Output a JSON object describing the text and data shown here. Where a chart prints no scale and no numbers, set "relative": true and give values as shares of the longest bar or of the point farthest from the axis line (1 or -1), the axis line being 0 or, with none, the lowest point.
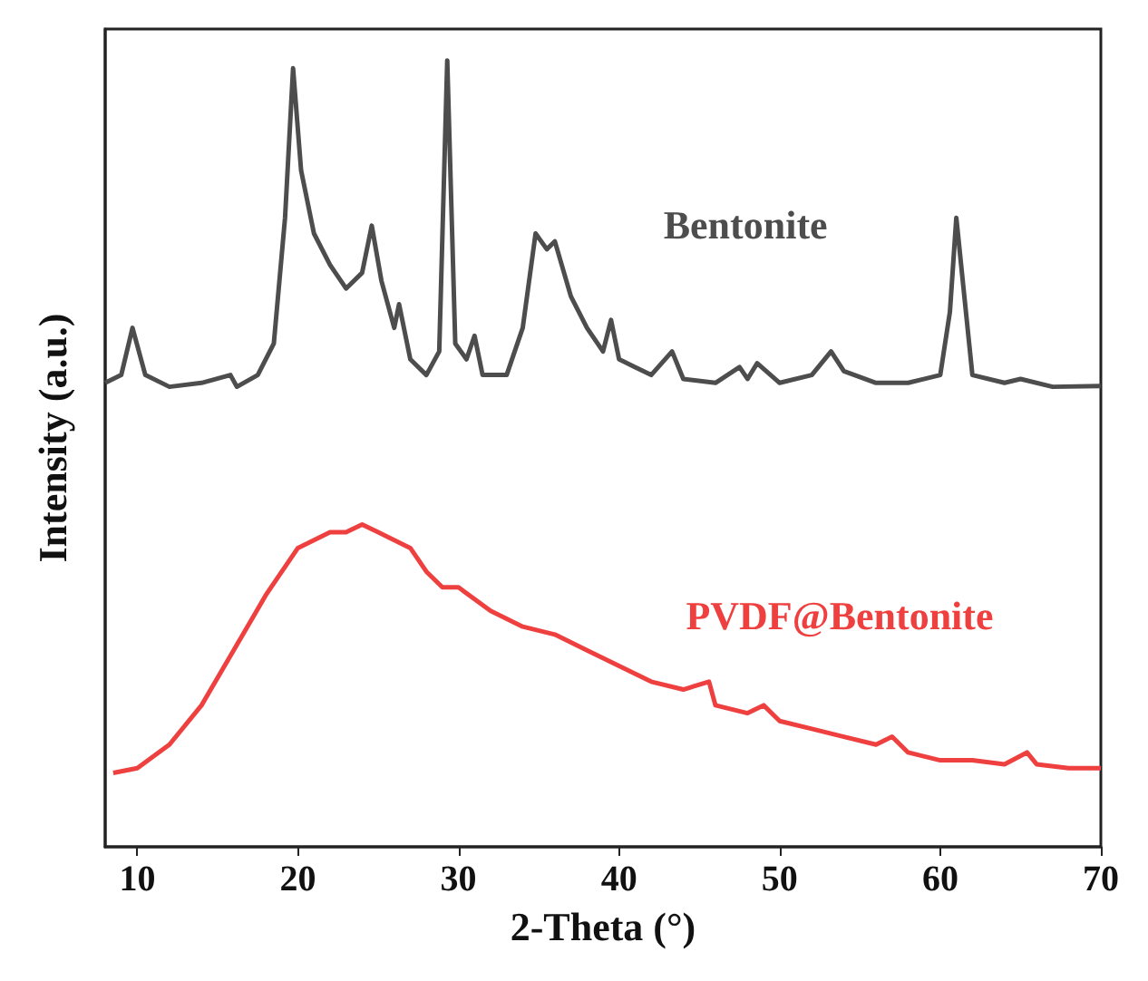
{
  "chart_data": {
    "type": "line",
    "xlabel": "2-Theta (°)",
    "ylabel": "Intensity (a.u.)",
    "relative": true,
    "xlim": [
      8,
      70
    ],
    "xticks": [
      10,
      20,
      30,
      40,
      50,
      60,
      70
    ],
    "grid": false,
    "legend": false,
    "marker": "none",
    "line_style": "solid",
    "series": [
      {
        "name": "Bentonite",
        "color": "#4d4d4d",
        "x": [
          8,
          9,
          9.7,
          10.5,
          12,
          14,
          15.8,
          16.2,
          17.5,
          18.5,
          19.2,
          19.7,
          20.2,
          21,
          22,
          23,
          24,
          24.6,
          25.2,
          26,
          26.3,
          27,
          28,
          28.8,
          29.3,
          29.8,
          30.5,
          31,
          31.5,
          33,
          34,
          34.8,
          35.5,
          36,
          37,
          38,
          39,
          39.5,
          40,
          41,
          42,
          43.3,
          44,
          46,
          47.5,
          48,
          48.6,
          50,
          52,
          53.2,
          54,
          56,
          58,
          60,
          60.6,
          61,
          61.5,
          62,
          64,
          65,
          67,
          70
        ],
        "values": [
          0.59,
          0.6,
          0.66,
          0.6,
          0.585,
          0.59,
          0.6,
          0.585,
          0.6,
          0.64,
          0.8,
          0.99,
          0.86,
          0.78,
          0.74,
          0.71,
          0.73,
          0.79,
          0.72,
          0.66,
          0.69,
          0.62,
          0.6,
          0.63,
          1.0,
          0.64,
          0.62,
          0.65,
          0.6,
          0.6,
          0.66,
          0.78,
          0.76,
          0.77,
          0.7,
          0.66,
          0.63,
          0.67,
          0.62,
          0.61,
          0.6,
          0.63,
          0.595,
          0.59,
          0.61,
          0.595,
          0.615,
          0.59,
          0.6,
          0.63,
          0.605,
          0.59,
          0.59,
          0.6,
          0.68,
          0.8,
          0.7,
          0.6,
          0.59,
          0.595,
          0.585,
          0.586
        ]
      },
      {
        "name": "PVDF@Bentonite",
        "color": "#ef4040",
        "x": [
          8.5,
          10,
          12,
          14,
          16,
          18,
          19,
          20,
          21,
          22,
          23,
          24,
          25,
          26,
          27,
          28,
          29,
          30,
          32,
          34,
          36,
          38,
          40,
          42,
          44,
          45.6,
          46,
          48,
          49,
          50,
          52,
          54,
          56,
          57,
          58,
          60,
          62,
          64,
          65.4,
          66,
          68,
          70
        ],
        "values": [
          0.094,
          0.1,
          0.13,
          0.18,
          0.25,
          0.32,
          0.35,
          0.38,
          0.39,
          0.4,
          0.4,
          0.41,
          0.4,
          0.39,
          0.38,
          0.35,
          0.33,
          0.33,
          0.3,
          0.28,
          0.27,
          0.25,
          0.23,
          0.21,
          0.2,
          0.21,
          0.18,
          0.17,
          0.18,
          0.16,
          0.15,
          0.14,
          0.13,
          0.14,
          0.12,
          0.11,
          0.11,
          0.105,
          0.12,
          0.105,
          0.1,
          0.1
        ]
      }
    ]
  }
}
